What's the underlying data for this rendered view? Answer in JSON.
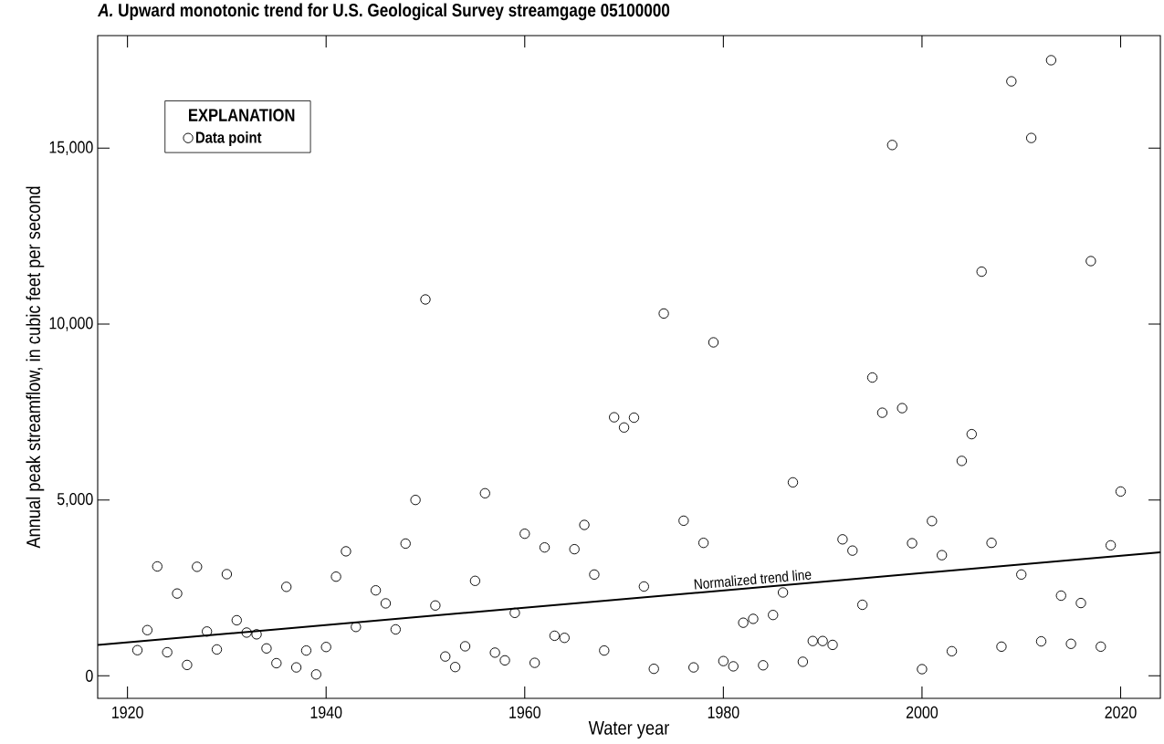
{
  "chart_data": {
    "type": "scatter",
    "title": "*A.* Upward monotonic trend for U.S. Geological Survey streamgage 05100000",
    "xlabel": "Water year",
    "ylabel": "Annual peak streamflow, in cubic feet per second",
    "legend_title": "EXPLANATION",
    "legend": "top left",
    "grid": false,
    "marker": "circle",
    "xlim": [
      1917,
      2024
    ],
    "ylim": [
      -640,
      18200
    ],
    "xticks": [
      1920,
      1940,
      1960,
      1980,
      2000,
      2020
    ],
    "yticks": [
      0,
      {
        "value": 5000,
        "label": "5,000"
      },
      {
        "value": 10000,
        "label": "10,000"
      },
      {
        "value": 15000,
        "label": "15,000"
      }
    ],
    "series": [
      {
        "name": "Data point",
        "color": "#000000",
        "x": [
          1921,
          1922,
          1923,
          1924,
          1925,
          1926,
          1927,
          1928,
          1929,
          1930,
          1931,
          1932,
          1933,
          1934,
          1935,
          1936,
          1937,
          1938,
          1939,
          1940,
          1941,
          1942,
          1943,
          1945,
          1946,
          1947,
          1948,
          1949,
          1950,
          1951,
          1952,
          1953,
          1954,
          1955,
          1956,
          1957,
          1958,
          1959,
          1960,
          1961,
          1962,
          1963,
          1964,
          1965,
          1966,
          1967,
          1968,
          1969,
          1970,
          1971,
          1972,
          1973,
          1974,
          1976,
          1977,
          1978,
          1979,
          1980,
          1981,
          1982,
          1983,
          1984,
          1985,
          1986,
          1987,
          1988,
          1989,
          1990,
          1991,
          1992,
          1993,
          1994,
          1995,
          1996,
          1997,
          1998,
          1999,
          2000,
          2001,
          2002,
          2003,
          2004,
          2005,
          2006,
          2007,
          2008,
          2009,
          2010,
          2011,
          2012,
          2013,
          2014,
          2015,
          2016,
          2017,
          2018,
          2019,
          2020
        ],
        "values": [
          730,
          1300,
          3110,
          670,
          2340,
          310,
          3100,
          1260,
          750,
          2890,
          1580,
          1230,
          1180,
          780,
          360,
          2530,
          240,
          720,
          40,
          820,
          2820,
          3540,
          1390,
          2430,
          2060,
          1320,
          3760,
          5000,
          10700,
          2000,
          550,
          250,
          840,
          2700,
          5190,
          660,
          440,
          1790,
          4040,
          370,
          3650,
          1140,
          1080,
          3600,
          4290,
          2880,
          720,
          7350,
          7060,
          7340,
          2540,
          200,
          10300,
          4410,
          240,
          3780,
          9480,
          420,
          270,
          1510,
          1620,
          300,
          1730,
          2370,
          5500,
          400,
          990,
          990,
          880,
          3880,
          3560,
          2020,
          8480,
          7480,
          15090,
          7610,
          3770,
          190,
          4400,
          3430,
          700,
          6110,
          6870,
          11490,
          3780,
          830,
          16900,
          2880,
          15290,
          980,
          17500,
          2280,
          910,
          2070,
          11790,
          830,
          3710,
          5240
        ]
      },
      {
        "name": "Normalized trend line",
        "type": "line",
        "color": "#000000",
        "marker": "none",
        "line_style": "solid",
        "x": [
          1917,
          2024
        ],
        "values": [
          880,
          3510
        ]
      }
    ]
  }
}
